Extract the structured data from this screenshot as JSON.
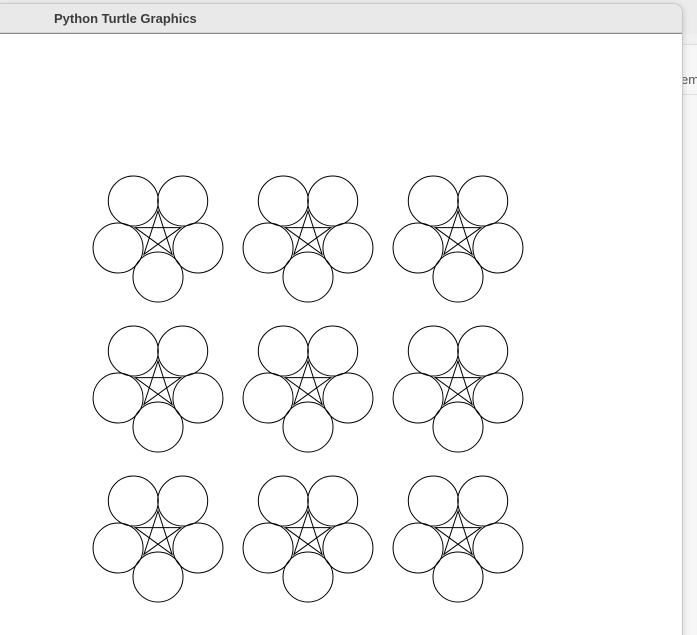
{
  "window": {
    "title": "Python Turtle Graphics"
  },
  "background_window": {
    "tab_text": "em"
  },
  "canvas": {
    "background_color": "#ffffff",
    "stroke_color": "#000000",
    "pattern": {
      "rows": 3,
      "columns": 3,
      "circles_per_flower": 5,
      "star_points": 5
    }
  }
}
